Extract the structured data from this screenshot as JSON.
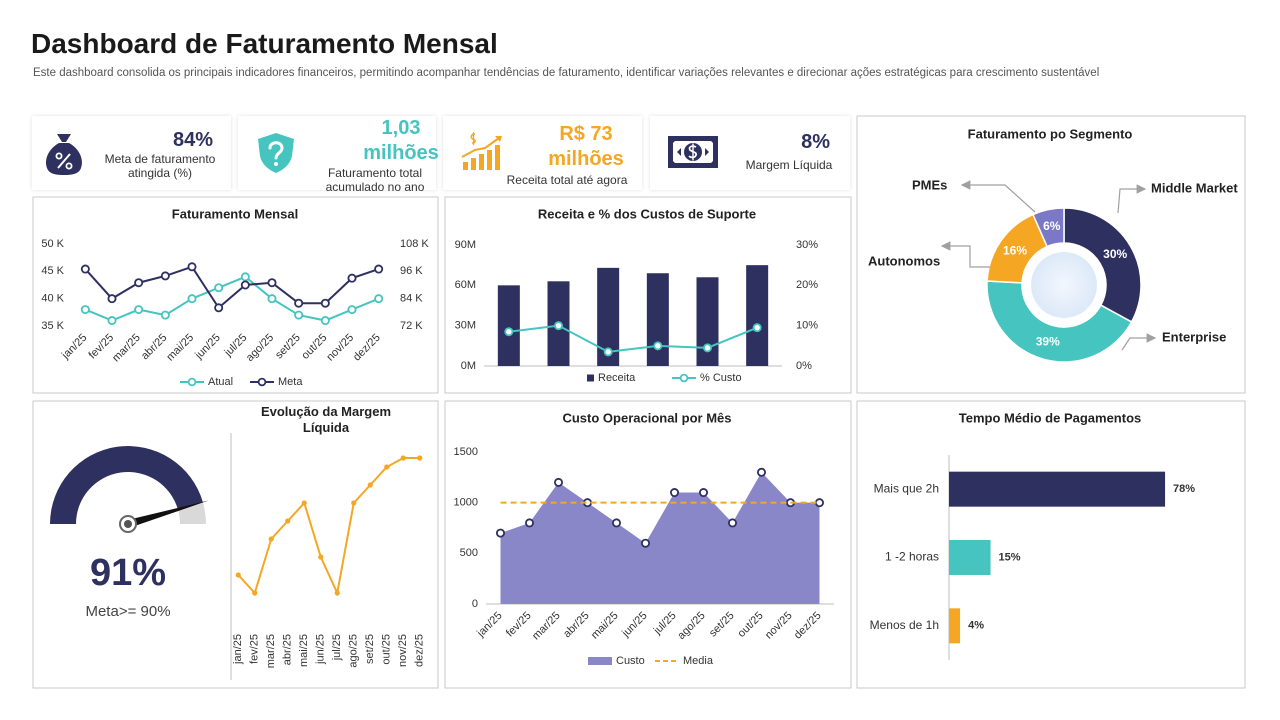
{
  "header": {
    "title": "Dashboard de Faturamento Mensal",
    "subtitle": "Este dashboard consolida os principais indicadores financeiros, permitindo acompanhar tendências de faturamento, identificar variações relevantes e direcionar ações estratégicas para crescimento sustentável"
  },
  "kpis": [
    {
      "value": "84%",
      "label": "Meta de faturamento atingida (%)"
    },
    {
      "value": "1,03 milhões",
      "label": "Faturamento total acumulado no ano"
    },
    {
      "value": "R$ 73 milhões",
      "label": "Receita total até agora"
    },
    {
      "value": "8%",
      "label": "Margem Líquida"
    }
  ],
  "chart_data": [
    {
      "type": "line",
      "title": "Faturamento Mensal",
      "categories": [
        "jan/25",
        "fev/25",
        "mar/25",
        "abr/25",
        "mai/25",
        "jun/25",
        "jul/25",
        "ago/25",
        "set/25",
        "out/25",
        "nov/25",
        "dez/25"
      ],
      "series": [
        {
          "name": "Atual",
          "color": "#45c4c0",
          "marker": "hollow",
          "values": [
            38000,
            36000,
            38000,
            37000,
            40000,
            42000,
            44000,
            40000,
            37000,
            36000,
            38000,
            40000
          ]
        },
        {
          "name": "Meta",
          "color": "#2e3060",
          "marker": "hollow",
          "axis": "y2",
          "values": [
            97000,
            84000,
            91000,
            94000,
            98000,
            80000,
            90000,
            91000,
            82000,
            82000,
            93000,
            97000
          ]
        }
      ],
      "ylim": [
        35000,
        50000
      ],
      "yticks": [
        {
          "value": 35000,
          "label": "35 K"
        },
        {
          "value": 40000,
          "label": "40 K"
        },
        {
          "value": 45000,
          "label": "45 K"
        },
        {
          "value": 50000,
          "label": "50 K"
        }
      ],
      "y2lim": [
        72000,
        108000
      ],
      "y2ticks": [
        {
          "value": 72000,
          "label": "72 K"
        },
        {
          "value": 84000,
          "label": "84 K"
        },
        {
          "value": 96000,
          "label": "96 K"
        },
        {
          "value": 108000,
          "label": "108 K"
        }
      ],
      "legend": "bottom"
    },
    {
      "type": "bar",
      "title": "Receita e % dos Custos de Suporte",
      "categories": [
        null,
        null,
        null,
        null,
        null,
        null
      ],
      "series": [
        {
          "name": "Receita",
          "color": "#2e3060",
          "values": [
            60000000,
            63000000,
            73000000,
            69000000,
            66000000,
            75000000
          ]
        },
        {
          "name": "% Custo",
          "type": "line",
          "color": "#45c4c0",
          "marker": "hollow",
          "axis": "y2",
          "values": [
            8.5,
            10,
            3.5,
            5,
            4.5,
            9.5
          ]
        }
      ],
      "ylim": [
        0,
        90000000
      ],
      "yticks": [
        {
          "value": 0,
          "label": "0M"
        },
        {
          "value": 30000000,
          "label": "30M"
        },
        {
          "value": 60000000,
          "label": "60M"
        },
        {
          "value": 90000000,
          "label": "90M"
        }
      ],
      "y2lim": [
        0,
        30
      ],
      "y2ticks": [
        {
          "value": 0,
          "label": "0%"
        },
        {
          "value": 10,
          "label": "10%"
        },
        {
          "value": 20,
          "label": "20%"
        },
        {
          "value": 30,
          "label": "30%"
        }
      ],
      "legend": "bottom"
    },
    {
      "type": "pie",
      "title": "Faturamento po Segmento",
      "donut": true,
      "categories": [
        "Middle Market",
        "Enterprise",
        "Autonomos",
        "PMEs"
      ],
      "values": [
        30,
        39,
        16,
        6
      ],
      "value_labels": [
        "30%",
        "39%",
        "16%",
        "6%"
      ],
      "colors": [
        "#2e3060",
        "#45c4c0",
        "#f5a623",
        "#7b78c8"
      ]
    },
    {
      "type": "gauge",
      "value": 91,
      "value_label": "91%",
      "caption": "Meta>= 90%",
      "ylim": [
        0,
        100
      ],
      "color": "#2e3060",
      "track_color": "#d9d9d9"
    },
    {
      "type": "line",
      "title": "Evolução da Margem Líquida",
      "categories": [
        "jan/25",
        "fev/25",
        "mar/25",
        "abr/25",
        "mai/25",
        "jun/25",
        "jul/25",
        "ago/25",
        "set/25",
        "out/25",
        "nov/25",
        "dez/25"
      ],
      "values": [
        2.5,
        1.5,
        4.5,
        5.5,
        6.5,
        3.5,
        1.5,
        6.5,
        7.5,
        8.5,
        9,
        9
      ],
      "color": "#f5a623",
      "marker": "filled",
      "ylim": [
        0,
        10
      ]
    },
    {
      "type": "area",
      "title": "Custo Operacional por Mês",
      "categories": [
        "jan/25",
        "fev/25",
        "mar/25",
        "abr/25",
        "mai/25",
        "jun/25",
        "jul/25",
        "ago/25",
        "set/25",
        "out/25",
        "nov/25",
        "dez/25"
      ],
      "series": [
        {
          "name": "Custo",
          "color": "#8a87c8",
          "marker": "hollow",
          "marker_color": "#2e3060",
          "values": [
            700,
            800,
            1200,
            1000,
            800,
            600,
            1100,
            1100,
            800,
            1300,
            1000,
            1000
          ]
        },
        {
          "name": "Media",
          "type": "line",
          "color": "#f5a623",
          "dashed": true,
          "marker": "none",
          "values": [
            1000,
            1000,
            1000,
            1000,
            1000,
            1000,
            1000,
            1000,
            1000,
            1000,
            1000,
            1000
          ]
        }
      ],
      "ylim": [
        0,
        1500
      ],
      "yticks": [
        0,
        500,
        1000,
        1500
      ],
      "legend": "bottom"
    },
    {
      "type": "bar",
      "orientation": "horizontal",
      "title": "Tempo Médio de Pagamentos",
      "categories": [
        "Mais que 2h",
        "1 -2 horas",
        "Menos de 1h"
      ],
      "values": [
        78,
        15,
        4
      ],
      "value_labels": [
        "78%",
        "15%",
        "4%"
      ],
      "colors": [
        "#2e3060",
        "#45c4c0",
        "#f5a623"
      ],
      "xlim": [
        0,
        100
      ]
    }
  ]
}
